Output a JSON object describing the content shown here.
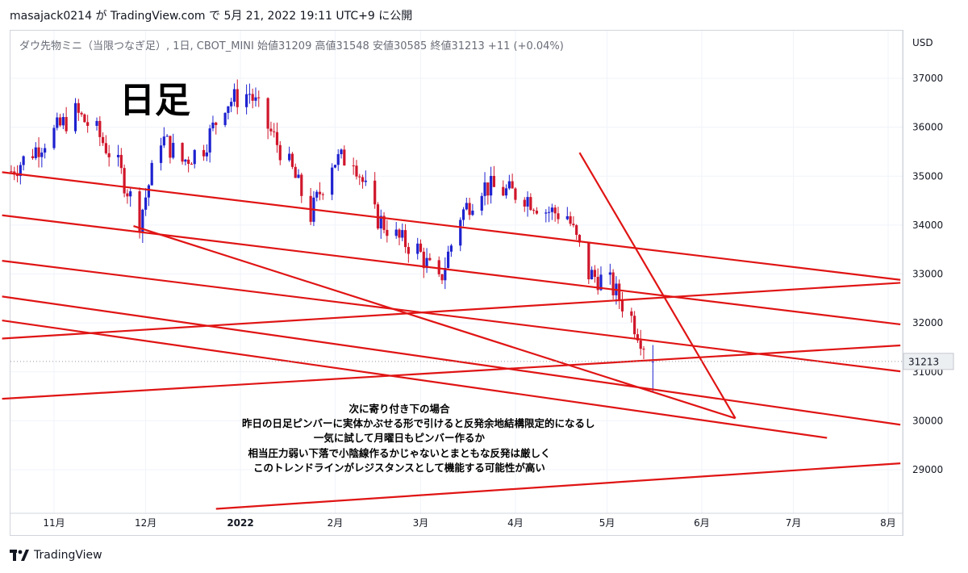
{
  "header": {
    "title": "masajack0214 が TradingView.com で 5月 21, 2022 19:11 UTC+9 に公開"
  },
  "symbol": {
    "text": "ダウ先物ミニ（当限つなぎ足）, 1日, CBOT_MINI  始値31209  高値31548  安値30585  終値31213  +11 (+0.04%)"
  },
  "chart_label": "日足",
  "annotation": [
    "次に寄り付き下の場合",
    "昨日の日足ピンバーに実体かぶせる形で引けると反発余地結構限定的になるし",
    "一気に試して月曜日もピンバー作るか",
    "相当圧力弱い下落で小陰線作るかじゃないとまともな反発は厳しく",
    "このトレンドラインがレジスタンスとして機能する可能性が高い"
  ],
  "footer": {
    "brand": "TradingView"
  },
  "chart_data": {
    "type": "candlestick",
    "currency": "USD",
    "ylim": [
      28200,
      38000
    ],
    "y_ticks": [
      29000,
      30000,
      31000,
      32000,
      33000,
      34000,
      35000,
      36000,
      37000
    ],
    "x_ticks": [
      {
        "label": "11月",
        "date": "2021-11-01"
      },
      {
        "label": "12月",
        "date": "2021-12-01"
      },
      {
        "label": "2022",
        "date": "2022-01-01"
      },
      {
        "label": "2月",
        "date": "2022-02-01"
      },
      {
        "label": "3月",
        "date": "2022-03-01"
      },
      {
        "label": "4月",
        "date": "2022-04-01"
      },
      {
        "label": "5月",
        "date": "2022-05-01"
      },
      {
        "label": "6月",
        "date": "2022-06-01"
      },
      {
        "label": "7月",
        "date": "2022-07-01"
      },
      {
        "label": "8月",
        "date": "2022-08-01"
      }
    ],
    "last_price": 31213,
    "up_color": "#1e22cf",
    "down_color": "#d0162b",
    "line_color": "#e01414",
    "closes": [
      {
        "date": "2021-10-18",
        "close": 35100
      },
      {
        "date": "2021-10-25",
        "close": 35500
      },
      {
        "date": "2021-11-01",
        "close": 35900
      },
      {
        "date": "2021-11-08",
        "close": 36300
      },
      {
        "date": "2021-11-15",
        "close": 35900
      },
      {
        "date": "2021-11-22",
        "close": 35200
      },
      {
        "date": "2021-11-29",
        "close": 34100
      },
      {
        "date": "2021-12-06",
        "close": 35800
      },
      {
        "date": "2021-12-13",
        "close": 35300
      },
      {
        "date": "2021-12-20",
        "close": 35600
      },
      {
        "date": "2021-12-27",
        "close": 36500
      },
      {
        "date": "2022-01-04",
        "close": 36700
      },
      {
        "date": "2022-01-10",
        "close": 36000
      },
      {
        "date": "2022-01-18",
        "close": 35100
      },
      {
        "date": "2022-01-24",
        "close": 34200
      },
      {
        "date": "2022-01-31",
        "close": 35300
      },
      {
        "date": "2022-02-07",
        "close": 35400
      },
      {
        "date": "2022-02-14",
        "close": 34200
      },
      {
        "date": "2022-02-22",
        "close": 33700
      },
      {
        "date": "2022-02-28",
        "close": 33500
      },
      {
        "date": "2022-03-07",
        "close": 32800
      },
      {
        "date": "2022-03-14",
        "close": 34200
      },
      {
        "date": "2022-03-21",
        "close": 34800
      },
      {
        "date": "2022-03-28",
        "close": 34700
      },
      {
        "date": "2022-04-04",
        "close": 34600
      },
      {
        "date": "2022-04-11",
        "close": 34300
      },
      {
        "date": "2022-04-18",
        "close": 34200
      },
      {
        "date": "2022-04-25",
        "close": 33000
      },
      {
        "date": "2022-05-02",
        "close": 32800
      },
      {
        "date": "2022-05-09",
        "close": 32100
      },
      {
        "date": "2022-05-16",
        "close": 31213
      }
    ],
    "trendlines": [
      {
        "from": {
          "date": "2021-10-15",
          "price": 35080
        },
        "to": {
          "date": "2022-08-05",
          "price": 32880
        }
      },
      {
        "from": {
          "date": "2021-10-15",
          "price": 34200
        },
        "to": {
          "date": "2022-08-05",
          "price": 31970
        }
      },
      {
        "from": {
          "date": "2021-10-15",
          "price": 33270
        },
        "to": {
          "date": "2022-08-05",
          "price": 31010
        }
      },
      {
        "from": {
          "date": "2021-10-15",
          "price": 32540
        },
        "to": {
          "date": "2022-08-05",
          "price": 29920
        }
      },
      {
        "from": {
          "date": "2021-10-15",
          "price": 32050
        },
        "to": {
          "date": "2022-07-12",
          "price": 29650
        }
      },
      {
        "from": {
          "date": "2021-11-27",
          "price": 33980
        },
        "to": {
          "date": "2022-06-12",
          "price": 30050
        }
      },
      {
        "from": {
          "date": "2022-04-22",
          "price": 35480
        },
        "to": {
          "date": "2022-06-12",
          "price": 30050
        }
      },
      {
        "from": {
          "date": "2021-10-15",
          "price": 31680
        },
        "to": {
          "date": "2022-08-05",
          "price": 32820
        }
      },
      {
        "from": {
          "date": "2021-10-15",
          "price": 30450
        },
        "to": {
          "date": "2022-08-05",
          "price": 31540
        }
      },
      {
        "from": {
          "date": "2021-12-24",
          "price": 28200
        },
        "to": {
          "date": "2022-08-05",
          "price": 29130
        }
      }
    ]
  }
}
